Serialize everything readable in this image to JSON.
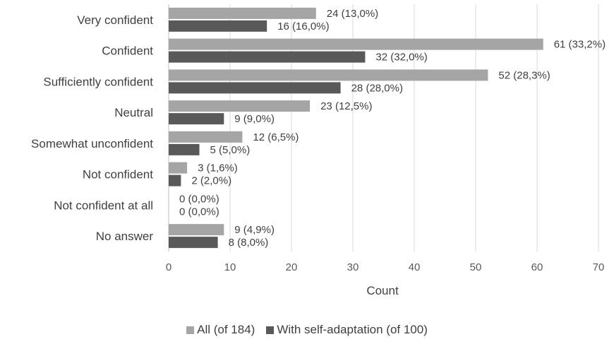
{
  "chart_data": {
    "type": "bar",
    "orientation": "horizontal",
    "categories": [
      "Very confident",
      "Confident",
      "Sufficiently confident",
      "Neutral",
      "Somewhat unconfident",
      "Not confident",
      "Not confident at all",
      "No answer"
    ],
    "series": [
      {
        "name": "All (of 184)",
        "color": "#a5a5a5",
        "values": [
          24,
          61,
          52,
          23,
          12,
          3,
          0,
          9
        ],
        "labels": [
          "24 (13,0%)",
          "61 (33,2%)",
          "52 (28,3%)",
          "23 (12,5%)",
          "12 (6,5%)",
          "3 (1,6%)",
          "0 (0,0%)",
          "9 (4,9%)"
        ]
      },
      {
        "name": "With self-adaptation (of 100)",
        "color": "#595959",
        "values": [
          16,
          32,
          28,
          9,
          5,
          2,
          0,
          8
        ],
        "labels": [
          "16 (16,0%)",
          "32 (32,0%)",
          "28 (28,0%)",
          "9 (9,0%)",
          "5 (5,0%)",
          "2 (2,0%)",
          "0 (0,0%)",
          "8 (8,0%)"
        ]
      }
    ],
    "xlabel": "Count",
    "ylabel": "",
    "xlim": [
      0,
      70
    ],
    "xticks": [
      0,
      10,
      20,
      30,
      40,
      50,
      60,
      70
    ],
    "grid": "vertical",
    "legend": "bottom-center"
  }
}
